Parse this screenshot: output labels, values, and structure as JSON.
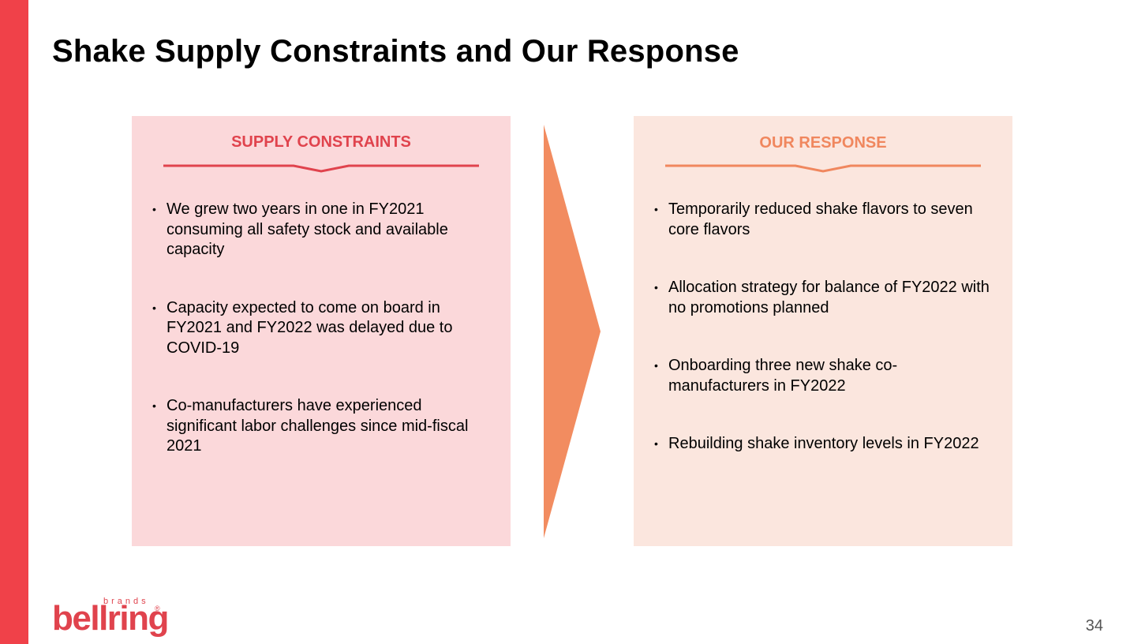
{
  "slide": {
    "title": "Shake Supply Constraints and Our Response",
    "page_number": "34",
    "accent_color": "#f04149"
  },
  "left_panel": {
    "heading": "SUPPLY CONSTRAINTS",
    "heading_color": "#e0434d",
    "background": "#fbd8da",
    "bullets": [
      "We grew two years in one in FY2021 consuming all safety stock and available capacity",
      "Capacity expected to come on board in FY2021 and FY2022 was delayed due to COVID-19",
      "Co-manufacturers have experienced significant labor challenges since mid-fiscal 2021"
    ]
  },
  "right_panel": {
    "heading": "OUR RESPONSE",
    "heading_color": "#f0875e",
    "background": "#fbe6de",
    "bullets": [
      "Temporarily reduced shake flavors to seven core flavors",
      "Allocation strategy for balance of FY2022 with no promotions planned",
      "Onboarding three new shake co-manufacturers in FY2022",
      "Rebuilding shake inventory levels in FY2022"
    ]
  },
  "logo": {
    "wordmark": "bellring",
    "tagline": "brands",
    "registered": "®"
  },
  "icons": {
    "arrow": "chevron-right-arrow",
    "bullet": "bullet-dot"
  }
}
